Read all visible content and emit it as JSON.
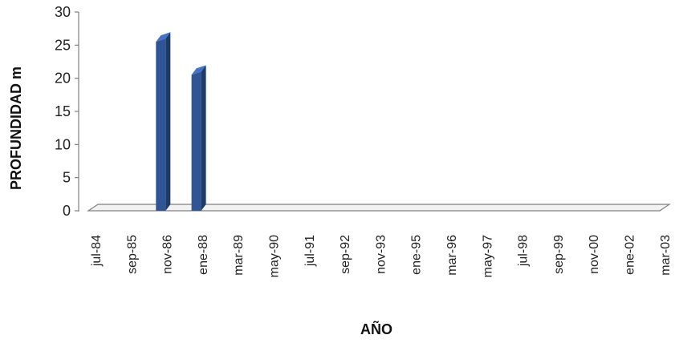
{
  "chart_data": {
    "type": "bar",
    "title": "",
    "xlabel": "AÑO",
    "ylabel": "PROFUNDIDAD m",
    "ylim": [
      0,
      30
    ],
    "yticks": [
      0,
      5,
      10,
      15,
      20,
      25,
      30
    ],
    "categories": [
      "jul-84",
      "sep-85",
      "nov-86",
      "ene-88",
      "mar-89",
      "may-90",
      "jul-91",
      "sep-92",
      "nov-93",
      "ene-95",
      "mar-96",
      "may-97",
      "jul-98",
      "sep-99",
      "nov-00",
      "ene-02",
      "mar-03"
    ],
    "series": [
      {
        "values": [
          null,
          26,
          21,
          null,
          null,
          null,
          null,
          null,
          null,
          null,
          null,
          null,
          null,
          null,
          null,
          null,
          null
        ]
      }
    ],
    "grid": false,
    "legend": "none",
    "colors": {
      "bar": "#2f5597",
      "bar_top": "#4472c4",
      "bar_side": "#1f3a66",
      "floor": "#808080"
    }
  }
}
